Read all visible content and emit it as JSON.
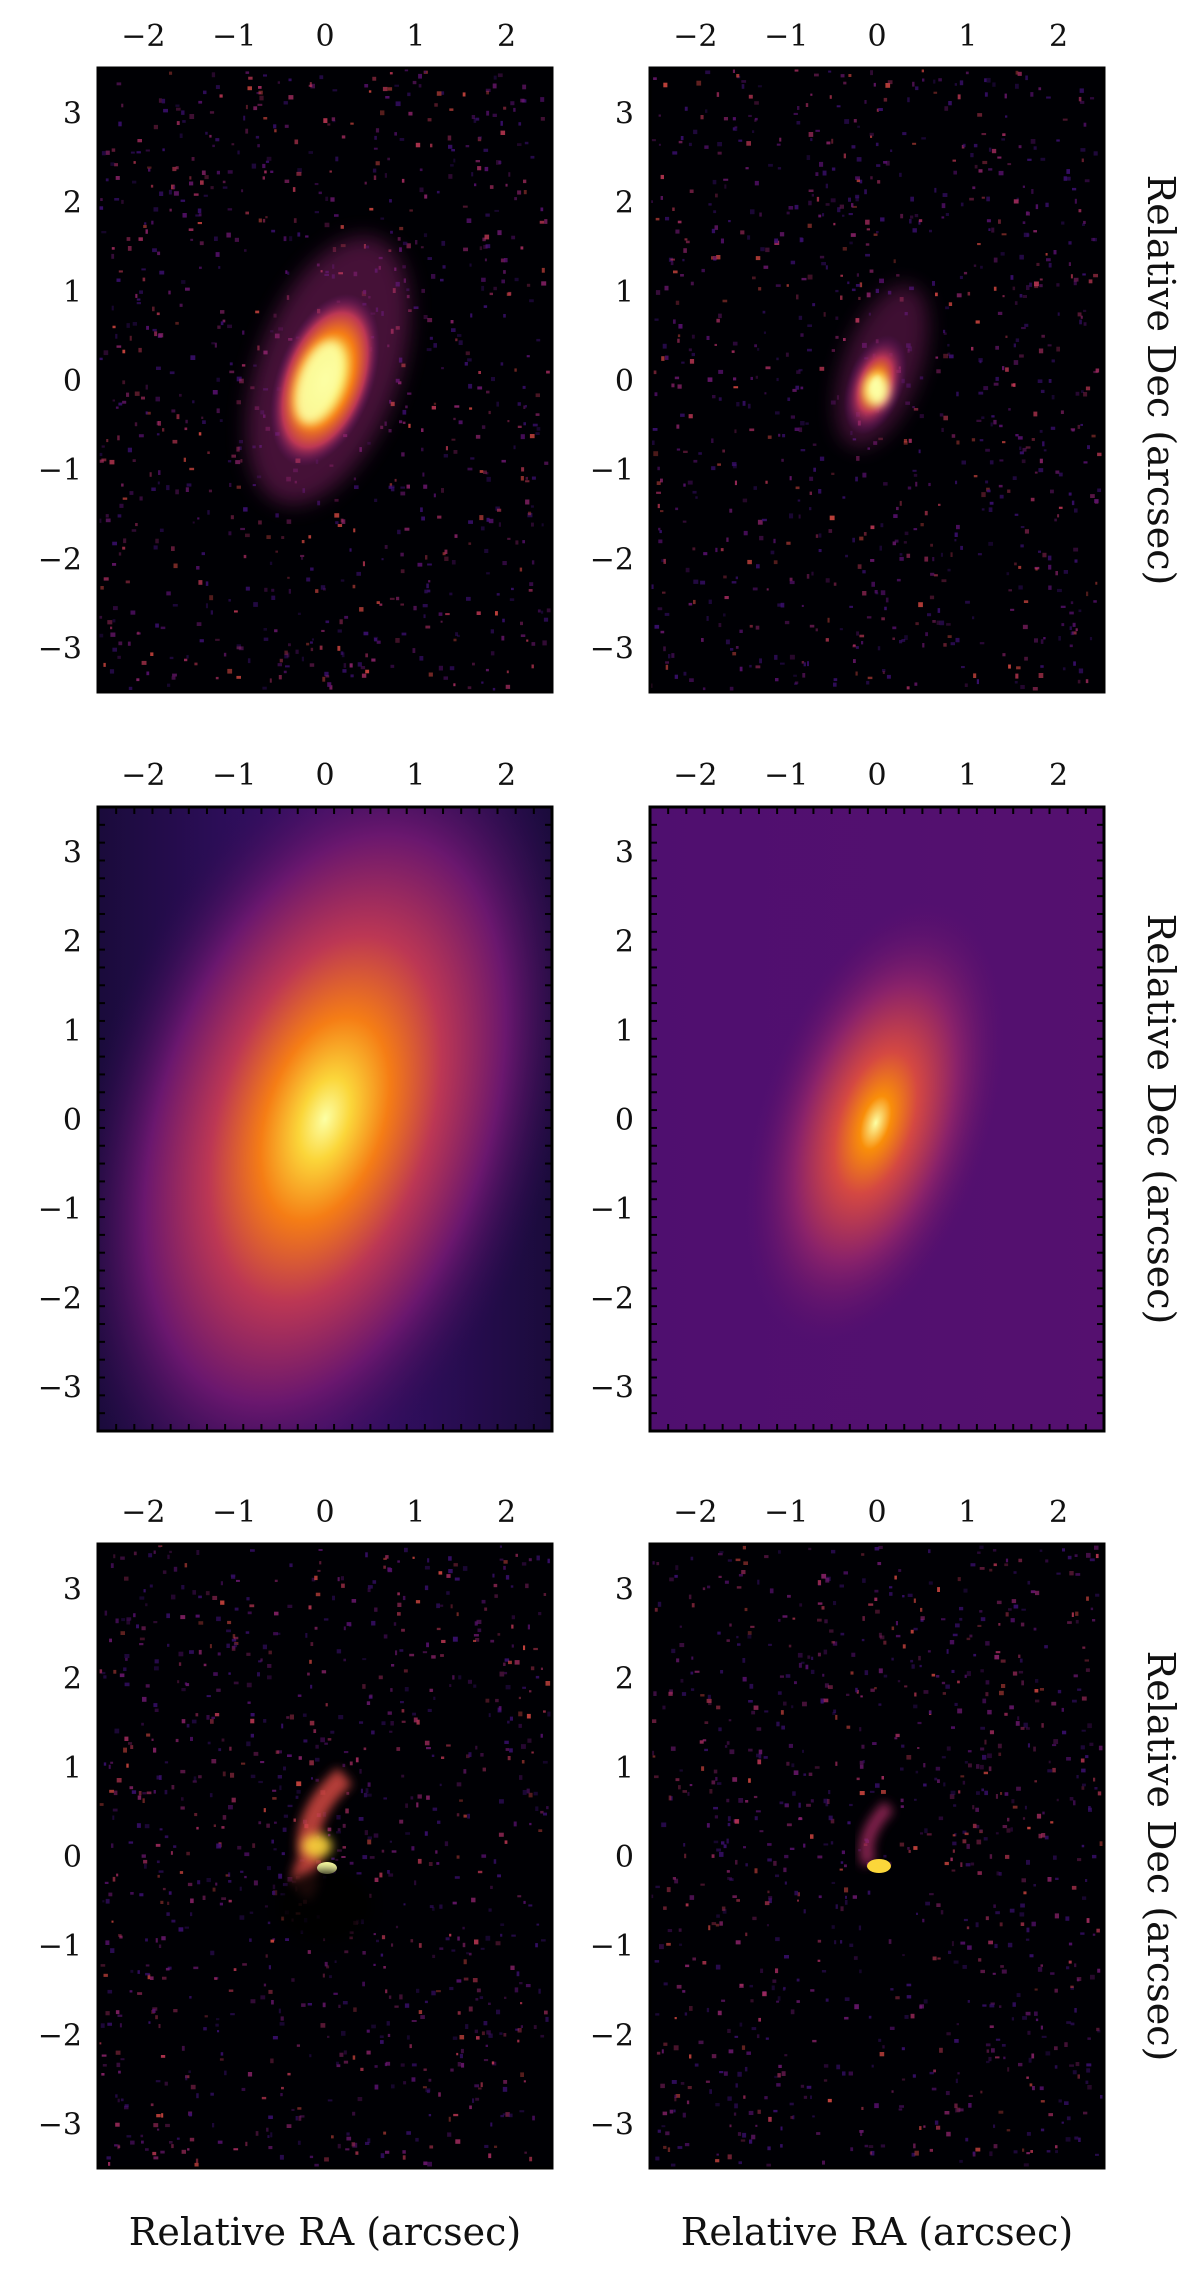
{
  "figure": {
    "xlabel": "Relative RA (arcsec)",
    "ylabel": "Relative Dec (arcsec)",
    "x_ticks": [
      "−2",
      "−1",
      "0",
      "1",
      "2"
    ],
    "y_ticks": [
      "3",
      "2",
      "1",
      "0",
      "−1",
      "−2",
      "−3"
    ],
    "xlim": [
      -2.5,
      2.5
    ],
    "ylim": [
      -3.5,
      3.5
    ],
    "colormap": "inferno",
    "colors": {
      "background": "#000004",
      "model_left_edge": "#1a0b3b",
      "model_right_edge": "#4f0f6f",
      "model_core": "#fcffa4",
      "model_mid": "#f57d15",
      "model_outer": "#bc3754"
    },
    "panels": [
      {
        "row": "data",
        "column": "left"
      },
      {
        "row": "data",
        "column": "right"
      },
      {
        "row": "model",
        "column": "left"
      },
      {
        "row": "model",
        "column": "right"
      },
      {
        "row": "residual",
        "column": "left"
      },
      {
        "row": "residual",
        "column": "right"
      }
    ]
  }
}
